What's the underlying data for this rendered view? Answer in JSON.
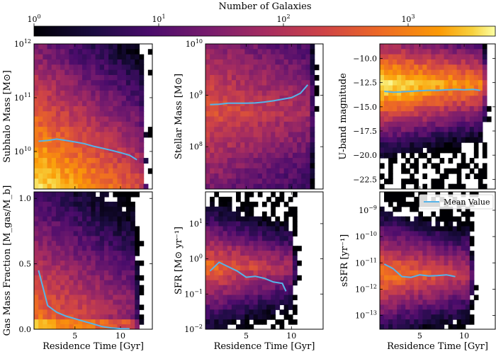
{
  "colorbar": {
    "label": "Number of Galaxies",
    "scale": "log",
    "range": [
      1,
      5000
    ],
    "ticks": [
      {
        "base": "10",
        "exp": "0",
        "value": 1
      },
      {
        "base": "10",
        "exp": "1",
        "value": 10
      },
      {
        "base": "10",
        "exp": "2",
        "value": 100
      },
      {
        "base": "10",
        "exp": "3",
        "value": 1000
      }
    ],
    "colormap": "inferno"
  },
  "legend": {
    "label": "Mean Value",
    "color": "#56b4e9",
    "placement": "upper-right of sSFR panel"
  },
  "chart_data": [
    {
      "type": "heatmap",
      "panel": "subhalo-mass",
      "xlabel": "Residence Time [Gyr]",
      "ylabel": "Subhalo Mass [M⊙]",
      "yscale": "log",
      "xlim": [
        0.5,
        13.5
      ],
      "ylim": [
        2000000000.0,
        1000000000000.0
      ],
      "xticks": [
        {
          "label": "5",
          "value": 5
        },
        {
          "label": "10",
          "value": 10
        }
      ],
      "yticks": [
        {
          "base": "10",
          "exp": "10",
          "value": 10000000000.0
        },
        {
          "base": "10",
          "exp": "11",
          "value": 100000000000.0
        },
        {
          "base": "10",
          "exp": "12",
          "value": 1000000000000.0
        }
      ],
      "mean_line": {
        "x": [
          1,
          2,
          3,
          4,
          5,
          6,
          7,
          8,
          9,
          10,
          11,
          11.8
        ],
        "y": [
          15500000000.0,
          16000000000.0,
          17000000000.0,
          16000000000.0,
          15000000000.0,
          14000000000.0,
          12500000000.0,
          11500000000.0,
          10500000000.0,
          9500000000.0,
          8500000000.0,
          7000000000.0
        ]
      }
    },
    {
      "type": "heatmap",
      "panel": "stellar-mass",
      "xlabel": "Residence Time [Gyr]",
      "ylabel": "Stellar Mass [M⊙]",
      "yscale": "log",
      "xlim": [
        0.5,
        13.5
      ],
      "ylim": [
        15000000.0,
        10000000000.0
      ],
      "xticks": [
        {
          "label": "5",
          "value": 5
        },
        {
          "label": "10",
          "value": 10
        }
      ],
      "yticks": [
        {
          "base": "10",
          "exp": "8",
          "value": 100000000.0
        },
        {
          "base": "10",
          "exp": "9",
          "value": 1000000000.0
        },
        {
          "base": "10",
          "exp": "10",
          "value": 10000000000.0
        }
      ],
      "mean_line": {
        "x": [
          1,
          2,
          3,
          4,
          5,
          6,
          7,
          8,
          9,
          10,
          11,
          11.8
        ],
        "y": [
          660000000.0,
          670000000.0,
          700000000.0,
          700000000.0,
          700000000.0,
          710000000.0,
          740000000.0,
          780000000.0,
          840000000.0,
          900000000.0,
          1100000000.0,
          1600000000.0
        ]
      }
    },
    {
      "type": "heatmap",
      "panel": "u-band-magnitude",
      "xlabel": "Residence Time [Gyr]",
      "ylabel": "U-band magnitude",
      "yscale": "linear",
      "xlim": [
        0.5,
        13.5
      ],
      "ylim": [
        -23.5,
        -8.5
      ],
      "xticks": [
        {
          "label": "5",
          "value": 5
        },
        {
          "label": "10",
          "value": 10
        }
      ],
      "yticks": [
        {
          "label": "−10.0",
          "value": -10
        },
        {
          "label": "−12.5",
          "value": -12.5
        },
        {
          "label": "−15.0",
          "value": -15
        },
        {
          "label": "−17.5",
          "value": -17.5
        },
        {
          "label": "−20.0",
          "value": -20
        },
        {
          "label": "−22.5",
          "value": -22.5
        }
      ],
      "mean_line": {
        "x": [
          1,
          2,
          3,
          4,
          5,
          6,
          7,
          8,
          9,
          10,
          11,
          11.8
        ],
        "y": [
          -13.4,
          -13.5,
          -13.45,
          -13.4,
          -13.35,
          -13.3,
          -13.3,
          -13.25,
          -13.2,
          -13.25,
          -13.2,
          -13.3
        ]
      }
    },
    {
      "type": "heatmap",
      "panel": "gas-mass-fraction",
      "xlabel": "Residence Time [Gyr]",
      "ylabel": "Gas Mass Fraction [M_gas/M_b]",
      "yscale": "linear",
      "xlim": [
        0.5,
        13.5
      ],
      "ylim": [
        0,
        1.05
      ],
      "xticks": [
        {
          "label": "5",
          "value": 5
        },
        {
          "label": "10",
          "value": 10
        }
      ],
      "yticks": [
        {
          "label": "0.0",
          "value": 0
        },
        {
          "label": "0.5",
          "value": 0.5
        },
        {
          "label": "1.0",
          "value": 1.0
        }
      ],
      "mean_line": {
        "x": [
          1,
          2,
          3,
          4,
          5,
          6,
          7,
          8,
          9,
          10,
          11
        ],
        "y": [
          0.45,
          0.18,
          0.13,
          0.1,
          0.08,
          0.06,
          0.04,
          0.02,
          0.01,
          0.005,
          0.003
        ]
      }
    },
    {
      "type": "heatmap",
      "panel": "sfr",
      "xlabel": "Residence Time [Gyr]",
      "ylabel": "SFR [M⊙ yr⁻¹]",
      "yscale": "log",
      "xlim": [
        0.5,
        13.5
      ],
      "ylim": [
        0.01,
        80
      ],
      "xticks": [
        {
          "label": "5",
          "value": 5
        },
        {
          "label": "10",
          "value": 10
        }
      ],
      "yticks": [
        {
          "base": "10",
          "exp": "−2",
          "value": 0.01
        },
        {
          "base": "10",
          "exp": "−1",
          "value": 0.1
        },
        {
          "base": "10",
          "exp": "0",
          "value": 1
        },
        {
          "base": "10",
          "exp": "1",
          "value": 10
        }
      ],
      "mean_line": {
        "x": [
          1,
          2,
          3,
          4,
          5,
          6,
          7,
          8,
          9,
          9.4
        ],
        "y": [
          0.45,
          0.8,
          0.6,
          0.45,
          0.3,
          0.32,
          0.28,
          0.22,
          0.2,
          0.12
        ]
      }
    },
    {
      "type": "heatmap",
      "panel": "ssfr",
      "xlabel": "Residence Time [Gyr]",
      "ylabel": "sSFR [yr⁻¹]",
      "yscale": "log",
      "xlim": [
        0.5,
        13.5
      ],
      "ylim": [
        3e-14,
        5e-09
      ],
      "xticks": [
        {
          "label": "5",
          "value": 5
        },
        {
          "label": "10",
          "value": 10
        }
      ],
      "yticks": [
        {
          "base": "10",
          "exp": "−13",
          "value": 1e-13
        },
        {
          "base": "10",
          "exp": "−12",
          "value": 1e-12
        },
        {
          "base": "10",
          "exp": "−11",
          "value": 1e-11
        },
        {
          "base": "10",
          "exp": "−10",
          "value": 1e-10
        },
        {
          "base": "10",
          "exp": "−9",
          "value": 1e-09
        }
      ],
      "mean_line": {
        "x": [
          1,
          2,
          3,
          4,
          5,
          6,
          7,
          8,
          9
        ],
        "y": [
          9e-12,
          6e-12,
          3e-12,
          2.8e-12,
          3.5e-12,
          3.2e-12,
          3.3e-12,
          3.5e-12,
          3e-12
        ]
      }
    }
  ]
}
